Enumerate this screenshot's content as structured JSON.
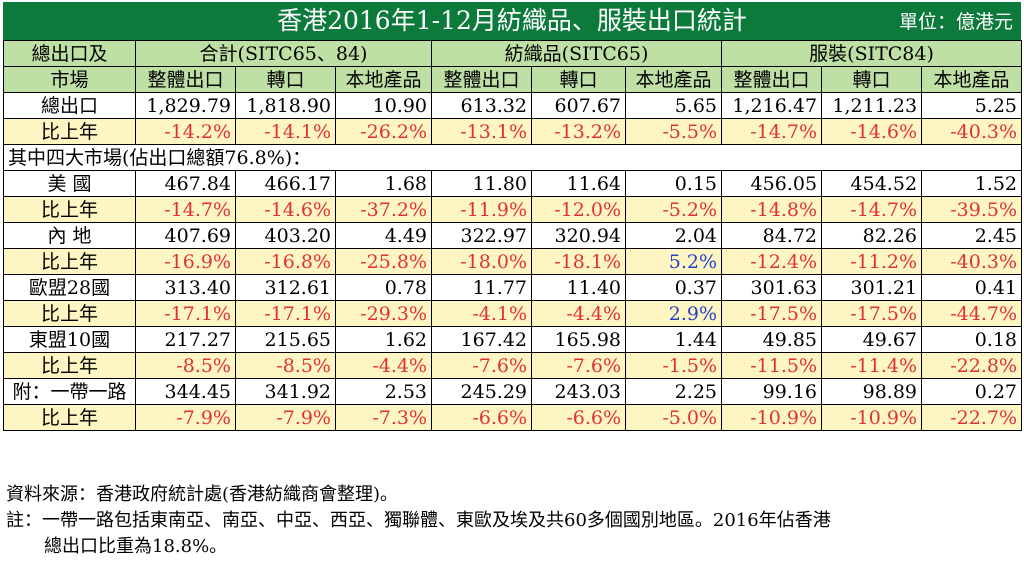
{
  "title": "香港2016年1-12月紡織品、服裝出口統計",
  "unit": "單位：億港元",
  "header": {
    "label_top": "總出口及",
    "label_bottom": "市場",
    "groups": [
      "合計(SITC65、84)",
      "紡織品(SITC65)",
      "服裝(SITC84)"
    ],
    "subcols": [
      "整體出口",
      "轉口",
      "本地產品"
    ]
  },
  "section_label": "其中四大市場(佔出口總額76.8%)：",
  "rows": [
    {
      "label": "總出口",
      "values": [
        "1,829.79",
        "1,818.90",
        "10.90",
        "613.32",
        "607.67",
        "5.65",
        "1,216.47",
        "1,211.23",
        "5.25"
      ],
      "pct_label": "比上年",
      "pct": [
        "-14.2%",
        "-14.1%",
        "-26.2%",
        "-13.1%",
        "-13.2%",
        "-5.5%",
        "-14.7%",
        "-14.6%",
        "-40.3%"
      ]
    },
    {
      "label": "美 國",
      "values": [
        "467.84",
        "466.17",
        "1.68",
        "11.80",
        "11.64",
        "0.15",
        "456.05",
        "454.52",
        "1.52"
      ],
      "pct_label": "比上年",
      "pct": [
        "-14.7%",
        "-14.6%",
        "-37.2%",
        "-11.9%",
        "-12.0%",
        "-5.2%",
        "-14.8%",
        "-14.7%",
        "-39.5%"
      ]
    },
    {
      "label": "內 地",
      "values": [
        "407.69",
        "403.20",
        "4.49",
        "322.97",
        "320.94",
        "2.04",
        "84.72",
        "82.26",
        "2.45"
      ],
      "pct_label": "比上年",
      "pct": [
        "-16.9%",
        "-16.8%",
        "-25.8%",
        "-18.0%",
        "-18.1%",
        "5.2%",
        "-12.4%",
        "-11.2%",
        "-40.3%"
      ]
    },
    {
      "label": "歐盟28國",
      "values": [
        "313.40",
        "312.61",
        "0.78",
        "11.77",
        "11.40",
        "0.37",
        "301.63",
        "301.21",
        "0.41"
      ],
      "pct_label": "比上年",
      "pct": [
        "-17.1%",
        "-17.1%",
        "-29.3%",
        "-4.1%",
        "-4.4%",
        "2.9%",
        "-17.5%",
        "-17.5%",
        "-44.7%"
      ]
    },
    {
      "label": "東盟10國",
      "values": [
        "217.27",
        "215.65",
        "1.62",
        "167.42",
        "165.98",
        "1.44",
        "49.85",
        "49.67",
        "0.18"
      ],
      "pct_label": "比上年",
      "pct": [
        "-8.5%",
        "-8.5%",
        "-4.4%",
        "-7.6%",
        "-7.6%",
        "-1.5%",
        "-11.5%",
        "-11.4%",
        "-22.8%"
      ]
    },
    {
      "label": "附：一帶一路",
      "values": [
        "344.45",
        "341.92",
        "2.53",
        "245.29",
        "243.03",
        "2.25",
        "99.16",
        "98.89",
        "0.27"
      ],
      "pct_label": "比上年",
      "pct": [
        "-7.9%",
        "-7.9%",
        "-7.3%",
        "-6.6%",
        "-6.6%",
        "-5.0%",
        "-10.9%",
        "-10.9%",
        "-22.7%"
      ]
    }
  ],
  "colors": {
    "header_bg": "#0b7a3b",
    "subheader_bg": "#bfe0a4",
    "pct_row_bg": "#fdf6c3",
    "negative": "#e0303a",
    "positive": "#2540c8"
  },
  "notes": {
    "source": "資料來源：香港政府統計處(香港紡織商會整理)。",
    "note_line1": "註：一帶一路包括東南亞、南亞、中亞、西亞、獨聯體、東歐及埃及共60多個國別地區。2016年佔香港",
    "note_line2": "總出口比重為18.8%。"
  }
}
